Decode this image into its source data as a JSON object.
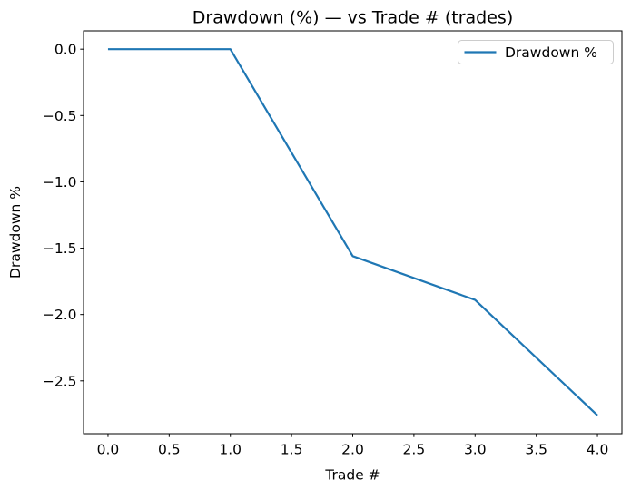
{
  "chart_data": {
    "type": "line",
    "title": "Drawdown (%) — vs Trade # (trades)",
    "xlabel": "Trade #",
    "ylabel": "Drawdown %",
    "x": [
      0,
      1,
      2,
      3,
      4
    ],
    "series": [
      {
        "name": "Drawdown %",
        "color": "#1f77b4",
        "values": [
          0.0,
          0.0,
          -1.56,
          -1.89,
          -2.76
        ]
      }
    ],
    "x_ticks": [
      0.0,
      0.5,
      1.0,
      1.5,
      2.0,
      2.5,
      3.0,
      3.5,
      4.0
    ],
    "y_ticks": [
      0.0,
      -0.5,
      -1.0,
      -1.5,
      -2.0,
      -2.5
    ],
    "xlim": [
      -0.2,
      4.2
    ],
    "ylim": [
      -2.898,
      0.138
    ],
    "grid": false,
    "legend": {
      "position": "upper right",
      "entries": [
        "Drawdown %"
      ]
    },
    "frame_color": "#000000",
    "background_color": "#ffffff"
  }
}
